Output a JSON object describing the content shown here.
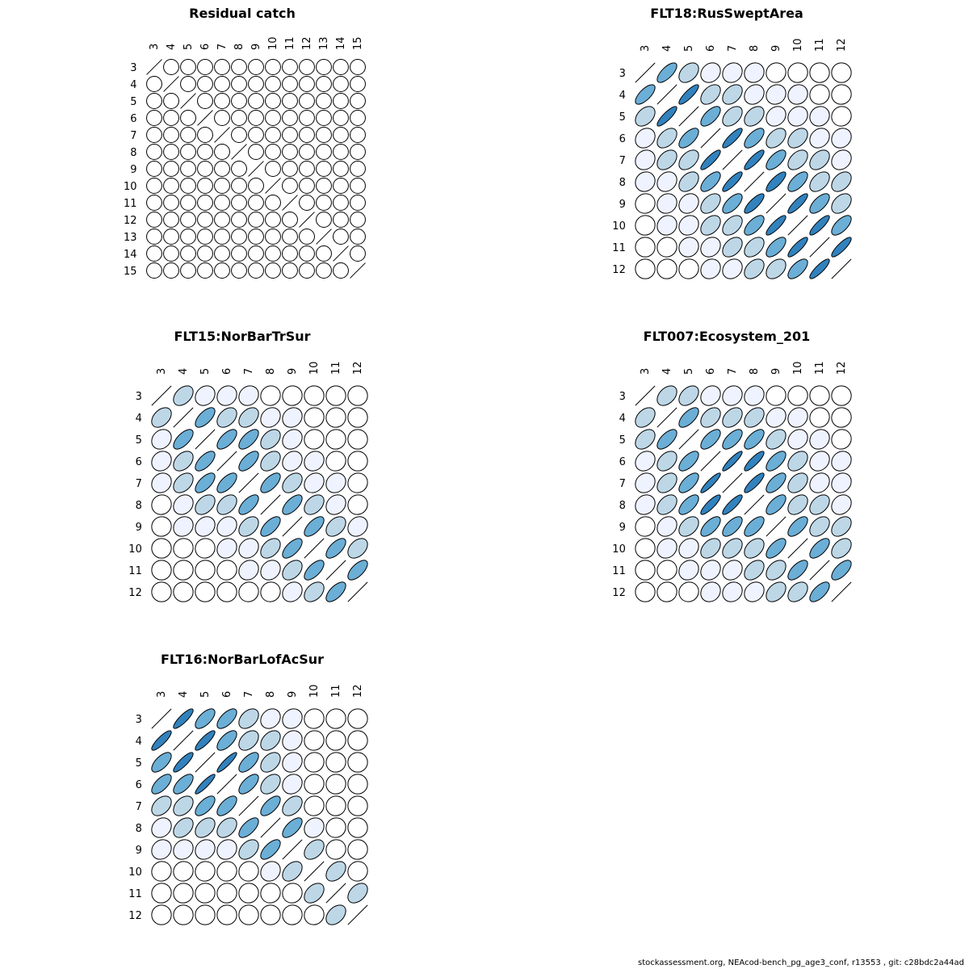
{
  "footer": "stockassessment.org, NEAcod-bench_pg_age3_conf, r13553 , git: c28bdc2a44ad",
  "palette": [
    "#ffffff",
    "#eff3ff",
    "#bdd7e7",
    "#6baed6",
    "#3182bd"
  ],
  "chart_data": [
    {
      "type": "heatmap",
      "title": "Residual catch",
      "ages": [
        "3",
        "4",
        "5",
        "6",
        "7",
        "8",
        "9",
        "10",
        "11",
        "12",
        "13",
        "14",
        "15"
      ],
      "matrix": [
        [
          1,
          0,
          0,
          0,
          0,
          0,
          0,
          0,
          0,
          0,
          0,
          0,
          0
        ],
        [
          0,
          1,
          0,
          0,
          0,
          0,
          0,
          0,
          0,
          0,
          0,
          0,
          0
        ],
        [
          0,
          0,
          1,
          0,
          0,
          0,
          0,
          0,
          0,
          0,
          0,
          0,
          0
        ],
        [
          0,
          0,
          0,
          1,
          0,
          0,
          0,
          0,
          0,
          0,
          0,
          0,
          0
        ],
        [
          0,
          0,
          0,
          0,
          1,
          0,
          0,
          0,
          0,
          0,
          0,
          0,
          0
        ],
        [
          0,
          0,
          0,
          0,
          0,
          1,
          0,
          0,
          0,
          0,
          0,
          0,
          0
        ],
        [
          0,
          0,
          0,
          0,
          0,
          0,
          1,
          0,
          0,
          0,
          0,
          0,
          0
        ],
        [
          0,
          0,
          0,
          0,
          0,
          0,
          0,
          1,
          0,
          0,
          0,
          0,
          0
        ],
        [
          0,
          0,
          0,
          0,
          0,
          0,
          0,
          0,
          1,
          0,
          0,
          0,
          0
        ],
        [
          0,
          0,
          0,
          0,
          0,
          0,
          0,
          0,
          0,
          1,
          0,
          0,
          0
        ],
        [
          0,
          0,
          0,
          0,
          0,
          0,
          0,
          0,
          0,
          0,
          1,
          0,
          0
        ],
        [
          0,
          0,
          0,
          0,
          0,
          0,
          0,
          0,
          0,
          0,
          0,
          1,
          0
        ],
        [
          0,
          0,
          0,
          0,
          0,
          0,
          0,
          0,
          0,
          0,
          0,
          0,
          1
        ]
      ]
    },
    {
      "type": "heatmap",
      "title": "FLT18:RusSweptArea",
      "ages": [
        "3",
        "4",
        "5",
        "6",
        "7",
        "8",
        "9",
        "10",
        "11",
        "12"
      ],
      "matrix": [
        [
          1.0,
          0.7,
          0.4,
          0.2,
          0.15,
          0.1,
          0.05,
          0.03,
          0.02,
          0.0
        ],
        [
          0.7,
          1.0,
          0.85,
          0.45,
          0.4,
          0.2,
          0.12,
          0.1,
          0.05,
          0.03
        ],
        [
          0.4,
          0.85,
          1.0,
          0.65,
          0.45,
          0.4,
          0.2,
          0.15,
          0.1,
          0.05
        ],
        [
          0.2,
          0.45,
          0.65,
          1.0,
          0.85,
          0.65,
          0.45,
          0.4,
          0.2,
          0.15
        ],
        [
          0.15,
          0.4,
          0.45,
          0.85,
          1.0,
          0.85,
          0.65,
          0.45,
          0.4,
          0.2
        ],
        [
          0.1,
          0.2,
          0.4,
          0.65,
          0.85,
          1.0,
          0.8,
          0.65,
          0.45,
          0.4
        ],
        [
          0.05,
          0.12,
          0.2,
          0.45,
          0.65,
          0.8,
          1.0,
          0.85,
          0.65,
          0.4
        ],
        [
          0.03,
          0.1,
          0.15,
          0.4,
          0.45,
          0.65,
          0.85,
          1.0,
          0.85,
          0.65
        ],
        [
          0.02,
          0.05,
          0.1,
          0.2,
          0.4,
          0.45,
          0.65,
          0.85,
          1.0,
          0.85
        ],
        [
          0.0,
          0.03,
          0.05,
          0.15,
          0.2,
          0.4,
          0.4,
          0.65,
          0.85,
          1.0
        ]
      ]
    },
    {
      "type": "heatmap",
      "title": "FLT15:NorBarTrSur",
      "ages": [
        "3",
        "4",
        "5",
        "6",
        "7",
        "8",
        "9",
        "10",
        "11",
        "12"
      ],
      "matrix": [
        [
          1.0,
          0.4,
          0.2,
          0.15,
          0.15,
          0.05,
          0.03,
          0.02,
          0.0,
          0.0
        ],
        [
          0.4,
          1.0,
          0.65,
          0.4,
          0.4,
          0.2,
          0.15,
          0.05,
          0.03,
          0.0
        ],
        [
          0.2,
          0.65,
          1.0,
          0.65,
          0.65,
          0.4,
          0.2,
          0.05,
          0.03,
          0.02
        ],
        [
          0.15,
          0.4,
          0.65,
          1.0,
          0.65,
          0.4,
          0.2,
          0.15,
          0.05,
          0.02
        ],
        [
          0.15,
          0.4,
          0.65,
          0.65,
          1.0,
          0.65,
          0.4,
          0.2,
          0.15,
          0.05
        ],
        [
          0.05,
          0.2,
          0.4,
          0.4,
          0.65,
          1.0,
          0.65,
          0.4,
          0.2,
          0.05
        ],
        [
          0.03,
          0.15,
          0.2,
          0.2,
          0.4,
          0.65,
          1.0,
          0.65,
          0.4,
          0.2
        ],
        [
          0.02,
          0.05,
          0.05,
          0.15,
          0.2,
          0.4,
          0.65,
          1.0,
          0.65,
          0.4
        ],
        [
          0.0,
          0.03,
          0.03,
          0.05,
          0.15,
          0.2,
          0.4,
          0.65,
          1.0,
          0.65
        ],
        [
          0.0,
          0.0,
          0.02,
          0.02,
          0.05,
          0.05,
          0.2,
          0.4,
          0.65,
          1.0
        ]
      ]
    },
    {
      "type": "heatmap",
      "title": "FLT007:Ecosystem_201",
      "ages": [
        "3",
        "4",
        "5",
        "6",
        "7",
        "8",
        "9",
        "10",
        "11",
        "12"
      ],
      "matrix": [
        [
          1.0,
          0.4,
          0.4,
          0.2,
          0.15,
          0.15,
          0.05,
          0.03,
          0.02,
          0.0
        ],
        [
          0.4,
          1.0,
          0.65,
          0.4,
          0.4,
          0.4,
          0.2,
          0.15,
          0.05,
          0.03
        ],
        [
          0.4,
          0.65,
          1.0,
          0.65,
          0.65,
          0.65,
          0.4,
          0.2,
          0.15,
          0.05
        ],
        [
          0.2,
          0.4,
          0.65,
          1.0,
          0.9,
          0.85,
          0.65,
          0.4,
          0.2,
          0.15
        ],
        [
          0.15,
          0.4,
          0.65,
          0.9,
          1.0,
          0.85,
          0.65,
          0.4,
          0.2,
          0.15
        ],
        [
          0.15,
          0.4,
          0.65,
          0.85,
          0.85,
          1.0,
          0.65,
          0.4,
          0.4,
          0.2
        ],
        [
          0.05,
          0.2,
          0.4,
          0.65,
          0.65,
          0.65,
          1.0,
          0.65,
          0.4,
          0.4
        ],
        [
          0.03,
          0.15,
          0.2,
          0.4,
          0.4,
          0.4,
          0.65,
          1.0,
          0.65,
          0.4
        ],
        [
          0.02,
          0.05,
          0.15,
          0.2,
          0.2,
          0.4,
          0.4,
          0.65,
          1.0,
          0.65
        ],
        [
          0.0,
          0.03,
          0.05,
          0.15,
          0.15,
          0.2,
          0.4,
          0.4,
          0.65,
          1.0
        ]
      ]
    },
    {
      "type": "heatmap",
      "title": "FLT16:NorBarLofAcSur",
      "ages": [
        "3",
        "4",
        "5",
        "6",
        "7",
        "8",
        "9",
        "10",
        "11",
        "12"
      ],
      "matrix": [
        [
          1.0,
          0.85,
          0.65,
          0.65,
          0.4,
          0.2,
          0.15,
          0.05,
          0.03,
          0.02
        ],
        [
          0.85,
          1.0,
          0.85,
          0.65,
          0.4,
          0.4,
          0.15,
          0.05,
          0.03,
          0.02
        ],
        [
          0.65,
          0.85,
          1.0,
          0.9,
          0.65,
          0.4,
          0.15,
          0.05,
          0.03,
          0.02
        ],
        [
          0.65,
          0.65,
          0.9,
          1.0,
          0.65,
          0.4,
          0.15,
          0.05,
          0.03,
          0.02
        ],
        [
          0.4,
          0.4,
          0.65,
          0.65,
          1.0,
          0.65,
          0.4,
          0.05,
          0.03,
          0.02
        ],
        [
          0.2,
          0.4,
          0.4,
          0.4,
          0.65,
          1.0,
          0.65,
          0.15,
          0.05,
          0.02
        ],
        [
          0.15,
          0.15,
          0.15,
          0.15,
          0.4,
          0.65,
          1.0,
          0.4,
          0.05,
          0.03
        ],
        [
          0.05,
          0.05,
          0.05,
          0.05,
          0.05,
          0.15,
          0.4,
          1.0,
          0.4,
          0.05
        ],
        [
          0.03,
          0.03,
          0.03,
          0.03,
          0.03,
          0.05,
          0.05,
          0.4,
          1.0,
          0.4
        ],
        [
          0.02,
          0.02,
          0.02,
          0.02,
          0.02,
          0.02,
          0.03,
          0.05,
          0.4,
          1.0
        ]
      ]
    }
  ]
}
